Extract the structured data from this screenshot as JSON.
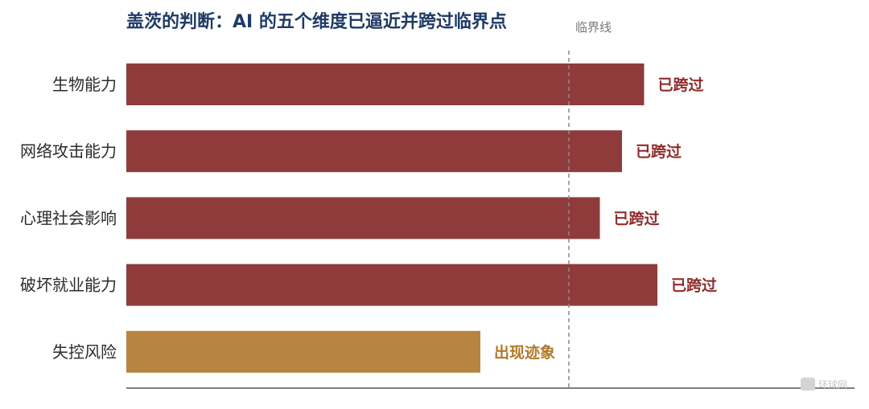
{
  "chart_data": {
    "type": "bar",
    "orientation": "horizontal",
    "title": "盖茨的判断：AI 的五个维度已逼近并跨过临界点",
    "categories": [
      "生物能力",
      "网络攻击能力",
      "心理社会影响",
      "破坏就业能力",
      "失控风险"
    ],
    "values": [
      117,
      112,
      107,
      120,
      80
    ],
    "status_labels": [
      "已跨过",
      "已跨过",
      "已跨过",
      "已跨过",
      "出现迹象"
    ],
    "bar_colors": [
      "#8f3b3b",
      "#8f3b3b",
      "#8f3b3b",
      "#8f3b3b",
      "#b88441"
    ],
    "status_colors": [
      "#8f2d2d",
      "#8f2d2d",
      "#8f2d2d",
      "#8f2d2d",
      "#b07a2a"
    ],
    "threshold": {
      "value": 100,
      "label": "临界线"
    },
    "xlim": [
      0,
      150
    ],
    "grid": false,
    "legend": "none",
    "axis_color": "#555555"
  },
  "watermark": {
    "text": "环球网",
    "icon": "watermark-logo-icon"
  }
}
